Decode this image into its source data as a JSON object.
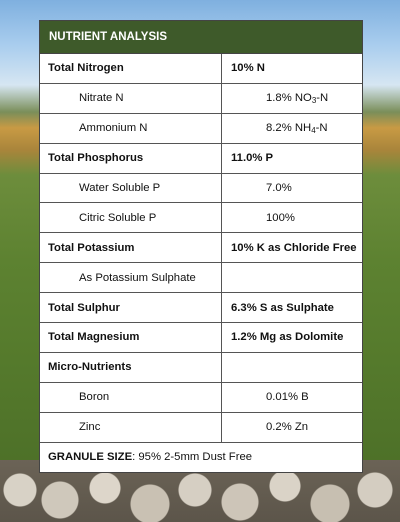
{
  "header": {
    "title": "NUTRIENT ANALYSIS"
  },
  "rows": [
    {
      "label": "Total Nitrogen",
      "value": "10% N",
      "type": "main"
    },
    {
      "label": "Nitrate N",
      "value_pre": "1.8% NO",
      "value_sub": "3",
      "value_post": "-N",
      "type": "sub"
    },
    {
      "label": "Ammonium N",
      "value_pre": "8.2% NH",
      "value_sub": "4",
      "value_post": "-N",
      "type": "sub"
    },
    {
      "label": "Total Phosphorus",
      "value": "11.0% P",
      "type": "main"
    },
    {
      "label": "Water Soluble P",
      "value": "7.0%",
      "type": "sub"
    },
    {
      "label": "Citric Soluble P",
      "value": "100%",
      "type": "sub"
    },
    {
      "label": "Total Potassium",
      "value": "10% K as Chloride Free",
      "type": "main"
    },
    {
      "label": "As Potassium Sulphate",
      "value": "",
      "type": "sub"
    },
    {
      "label": "Total Sulphur",
      "value": "6.3% S as Sulphate",
      "type": "main"
    },
    {
      "label": "Total Magnesium",
      "value": "1.2% Mg as Dolomite",
      "type": "main"
    },
    {
      "label": "Micro-Nutrients",
      "value": "",
      "type": "main"
    },
    {
      "label": "Boron",
      "value": "0.01% B",
      "type": "sub"
    },
    {
      "label": "Zinc",
      "value": "0.2% Zn",
      "type": "sub"
    }
  ],
  "footer": {
    "label": "GRANULE SIZE",
    "value": ": 95% 2-5mm Dust Free"
  }
}
